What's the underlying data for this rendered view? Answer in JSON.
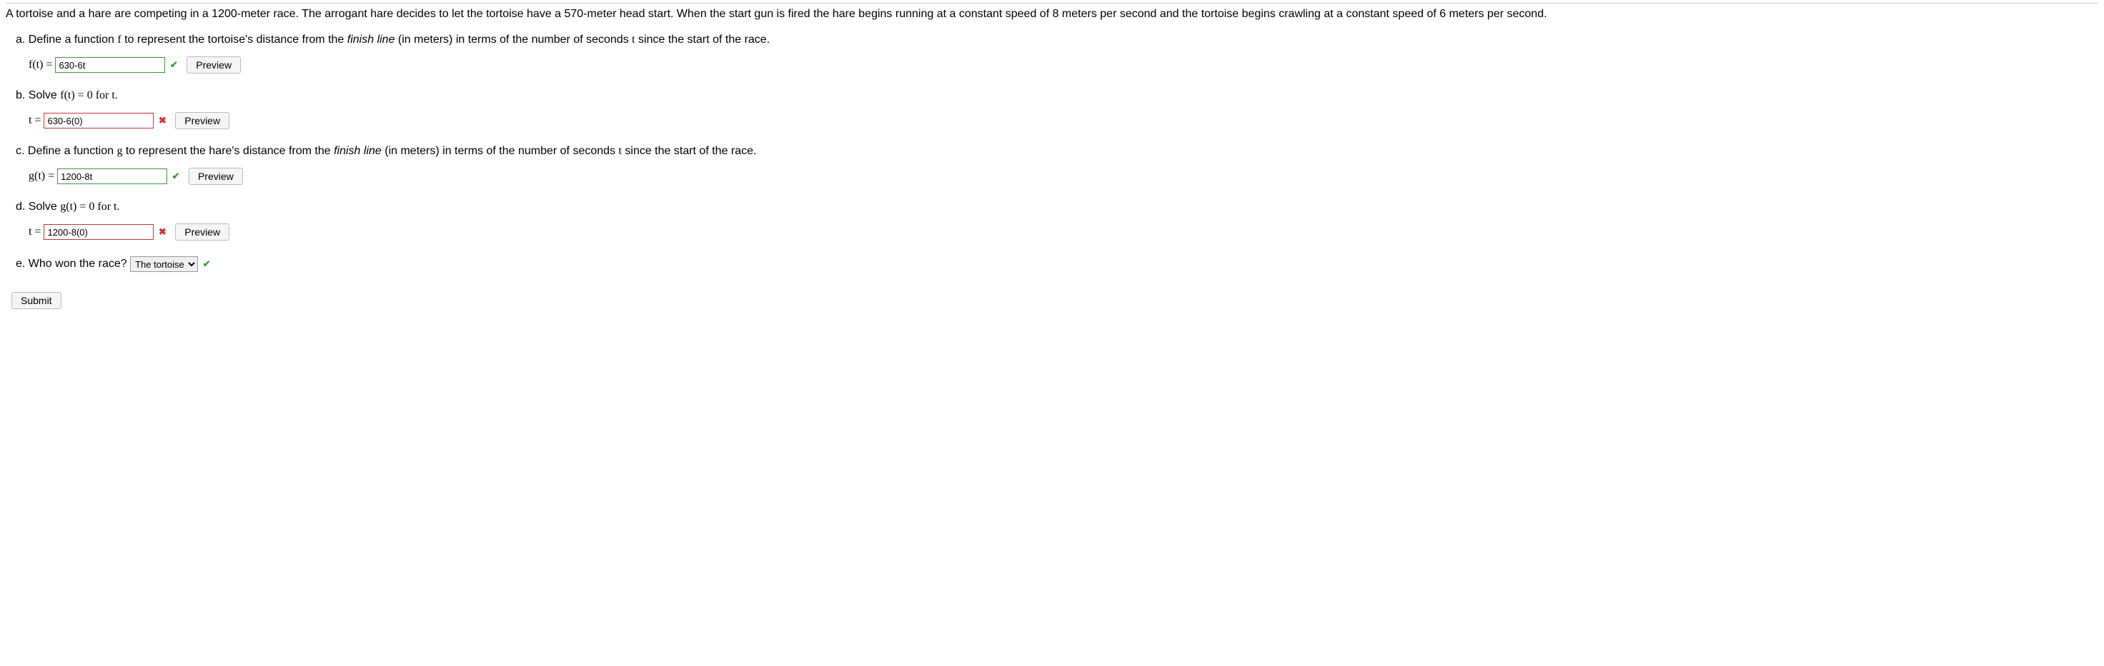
{
  "intro": "A tortoise and a hare are competing in a 1200-meter race. The arrogant hare decides to let the tortoise have a 570-meter head start. When the start gun is fired the hare begins running at a constant speed of 8 meters per second and the tortoise begins crawling at a constant speed of 6 meters per second.",
  "parts": {
    "a": {
      "label": "a.",
      "text_before": "Define a function ",
      "fn": "f",
      "text_mid1": " to represent the tortoise's distance from the ",
      "finish": "finish line",
      "text_mid2": " (in meters) in terms of the number of seconds ",
      "var": "t",
      "text_after": " since the start of the race.",
      "lhs": "f(t) = ",
      "value": "630-6t",
      "status": "correct",
      "preview": "Preview"
    },
    "b": {
      "label": "b.",
      "text": "Solve ",
      "expr": "f(t) = 0",
      "text_after": " for t.",
      "lhs": "t = ",
      "value": "630-6(0)",
      "status": "wrong",
      "preview": "Preview"
    },
    "c": {
      "label": "c.",
      "text_before": "Define a function ",
      "fn": "g",
      "text_mid1": " to represent the hare's distance from the ",
      "finish": "finish line",
      "text_mid2": " (in meters) in terms of the number of seconds ",
      "var": "t",
      "text_after": " since the start of the race.",
      "lhs": "g(t) = ",
      "value": "1200-8t",
      "status": "correct",
      "preview": "Preview"
    },
    "d": {
      "label": "d.",
      "text": "Solve ",
      "expr": "g(t) = 0",
      "text_after": " for t.",
      "lhs": "t = ",
      "value": "1200-8(0)",
      "status": "wrong",
      "preview": "Preview"
    },
    "e": {
      "label": "e.",
      "text": "Who won the race?",
      "selected": "The tortoise",
      "status": "correct"
    }
  },
  "submit": "Submit",
  "marks": {
    "correct": "✔",
    "wrong": "✖"
  }
}
